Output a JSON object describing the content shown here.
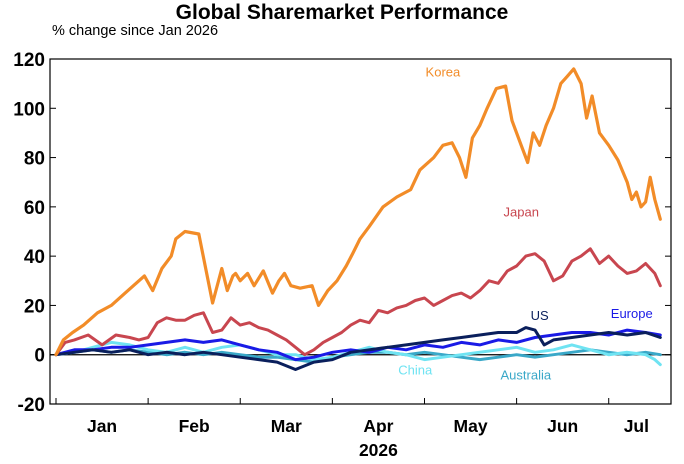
{
  "chart_data": {
    "type": "line",
    "title": "Global Sharemarket Performance",
    "subtitle": "% change since Jan 2026",
    "xlabel": "2026",
    "ylabel": "",
    "ylim": [
      -20,
      120
    ],
    "yticks": [
      -20,
      0,
      20,
      40,
      60,
      80,
      100,
      120
    ],
    "ytick_labels": [
      "-20",
      "0",
      "20",
      "40",
      "60",
      "80",
      "100",
      "120"
    ],
    "xlim": [
      0,
      6.6
    ],
    "months": [
      {
        "label": "Jan",
        "x": 0.5
      },
      {
        "label": "Feb",
        "x": 1.5
      },
      {
        "label": "Mar",
        "x": 2.5
      },
      {
        "label": "Apr",
        "x": 3.5
      },
      {
        "label": "May",
        "x": 4.5
      },
      {
        "label": "Jun",
        "x": 5.5
      },
      {
        "label": "Jul",
        "x": 6.3
      }
    ],
    "year_label": "2026",
    "grid": false,
    "legend": "direct labels on lines",
    "x_units": "months since start of Jan 2026 (0 = 1 Jan, 1 = 1 Feb, ...)",
    "series": [
      {
        "name": "Korea",
        "color": "#f28c28",
        "x": [
          0.0,
          0.08,
          0.18,
          0.3,
          0.45,
          0.6,
          0.75,
          0.9,
          0.96,
          1.05,
          1.15,
          1.25,
          1.3,
          1.4,
          1.55,
          1.7,
          1.8,
          1.86,
          1.92,
          1.95,
          2.0,
          2.08,
          2.15,
          2.25,
          2.35,
          2.42,
          2.48,
          2.55,
          2.65,
          2.78,
          2.85,
          2.95,
          3.05,
          3.15,
          3.22,
          3.3,
          3.4,
          3.55,
          3.7,
          3.85,
          3.95,
          4.1,
          4.2,
          4.3,
          4.38,
          4.45,
          4.52,
          4.6,
          4.68,
          4.78,
          4.88,
          4.95,
          5.05,
          5.12,
          5.18,
          5.25,
          5.32,
          5.4,
          5.48,
          5.55,
          5.62,
          5.7,
          5.76,
          5.82,
          5.9,
          6.0,
          6.1,
          6.2,
          6.25,
          6.3,
          6.35,
          6.4,
          6.45,
          6.5,
          6.56
        ],
        "values": [
          0,
          6,
          9,
          12,
          17,
          20,
          25,
          30,
          32,
          26,
          35,
          40,
          47,
          50,
          49,
          21,
          35,
          26,
          32,
          33,
          30,
          33,
          28,
          34,
          25,
          30,
          33,
          28,
          27,
          28,
          20,
          26,
          30,
          36,
          41,
          47,
          52,
          60,
          64,
          67,
          75,
          80,
          85,
          86,
          80,
          72,
          88,
          93,
          100,
          108,
          109,
          95,
          85,
          78,
          90,
          85,
          93,
          100,
          110,
          113,
          116,
          110,
          96,
          105,
          90,
          85,
          79,
          70,
          63,
          66,
          60,
          62,
          72,
          63,
          55
        ]
      },
      {
        "name": "Japan",
        "color": "#c8464f",
        "x": [
          0.0,
          0.1,
          0.2,
          0.35,
          0.5,
          0.65,
          0.8,
          0.9,
          1.0,
          1.1,
          1.2,
          1.3,
          1.4,
          1.5,
          1.6,
          1.7,
          1.8,
          1.9,
          2.0,
          2.1,
          2.2,
          2.3,
          2.4,
          2.5,
          2.6,
          2.7,
          2.8,
          2.9,
          3.0,
          3.1,
          3.2,
          3.3,
          3.4,
          3.5,
          3.6,
          3.7,
          3.8,
          3.9,
          4.0,
          4.1,
          4.2,
          4.3,
          4.4,
          4.5,
          4.6,
          4.7,
          4.8,
          4.9,
          5.0,
          5.1,
          5.2,
          5.3,
          5.4,
          5.5,
          5.6,
          5.7,
          5.8,
          5.9,
          6.0,
          6.1,
          6.2,
          6.3,
          6.4,
          6.5,
          6.56
        ],
        "values": [
          0,
          5,
          6,
          8,
          4,
          8,
          7,
          6,
          7,
          13,
          15,
          14,
          14,
          16,
          17,
          9,
          10,
          15,
          12,
          13,
          11,
          10,
          8,
          6,
          3,
          0,
          2,
          5,
          7,
          9,
          12,
          14,
          13,
          18,
          17,
          19,
          20,
          22,
          23,
          20,
          22,
          24,
          25,
          23,
          26,
          30,
          29,
          34,
          36,
          40,
          41,
          38,
          30,
          32,
          38,
          40,
          43,
          37,
          40,
          36,
          33,
          34,
          37,
          33,
          28
        ]
      },
      {
        "name": "US",
        "color": "#0a1f5c",
        "x": [
          0.0,
          0.2,
          0.4,
          0.6,
          0.8,
          1.0,
          1.2,
          1.4,
          1.6,
          1.8,
          2.0,
          2.2,
          2.4,
          2.6,
          2.8,
          3.0,
          3.2,
          3.4,
          3.6,
          3.8,
          4.0,
          4.2,
          4.4,
          4.6,
          4.8,
          5.0,
          5.1,
          5.2,
          5.3,
          5.4,
          5.6,
          5.8,
          6.0,
          6.2,
          6.4,
          6.56
        ],
        "values": [
          0,
          1,
          2,
          1,
          2,
          0,
          1,
          0,
          1,
          0,
          -1,
          -2,
          -3,
          -6,
          -3,
          -2,
          1,
          2,
          3,
          4,
          5,
          6,
          7,
          8,
          9,
          9,
          11,
          10,
          4,
          6,
          7,
          8,
          9,
          8,
          9,
          7
        ]
      },
      {
        "name": "Europe",
        "color": "#1a1ae6",
        "x": [
          0.0,
          0.2,
          0.4,
          0.6,
          0.8,
          1.0,
          1.2,
          1.4,
          1.6,
          1.8,
          2.0,
          2.2,
          2.4,
          2.6,
          2.8,
          3.0,
          3.2,
          3.4,
          3.6,
          3.8,
          4.0,
          4.2,
          4.4,
          4.6,
          4.8,
          5.0,
          5.2,
          5.4,
          5.6,
          5.8,
          6.0,
          6.2,
          6.4,
          6.56
        ],
        "values": [
          0,
          2,
          2,
          3,
          3,
          4,
          5,
          6,
          5,
          6,
          4,
          2,
          1,
          -2,
          -1,
          1,
          2,
          1,
          3,
          2,
          4,
          3,
          5,
          4,
          6,
          5,
          7,
          8,
          9,
          9,
          8,
          10,
          9,
          8
        ]
      },
      {
        "name": "China",
        "color": "#6fe3f2",
        "x": [
          0.0,
          0.2,
          0.4,
          0.6,
          0.8,
          1.0,
          1.2,
          1.4,
          1.6,
          1.8,
          2.0,
          2.2,
          2.4,
          2.6,
          2.8,
          3.0,
          3.2,
          3.4,
          3.6,
          3.8,
          4.0,
          4.2,
          4.4,
          4.6,
          4.8,
          5.0,
          5.2,
          5.4,
          5.6,
          5.8,
          6.0,
          6.2,
          6.4,
          6.5,
          6.56
        ],
        "values": [
          0,
          1,
          3,
          5,
          4,
          2,
          1,
          3,
          1,
          3,
          4,
          2,
          0,
          0,
          -2,
          -1,
          1,
          3,
          1,
          0,
          -2,
          -1,
          0,
          1,
          2,
          3,
          1,
          2,
          4,
          2,
          0,
          1,
          0,
          -2,
          -4
        ]
      },
      {
        "name": "Australia",
        "color": "#3aa8c8",
        "x": [
          0.0,
          0.2,
          0.4,
          0.6,
          0.8,
          1.0,
          1.2,
          1.4,
          1.6,
          1.8,
          2.0,
          2.2,
          2.4,
          2.6,
          2.8,
          3.0,
          3.2,
          3.4,
          3.6,
          3.8,
          4.0,
          4.2,
          4.4,
          4.6,
          4.8,
          5.0,
          5.2,
          5.4,
          5.6,
          5.8,
          6.0,
          6.2,
          6.4,
          6.56
        ],
        "values": [
          0,
          1,
          2,
          1,
          2,
          1,
          0,
          1,
          0,
          1,
          0,
          -1,
          -1,
          -2,
          -3,
          -1,
          0,
          1,
          1,
          0,
          1,
          0,
          -1,
          -2,
          -1,
          0,
          -1,
          0,
          1,
          2,
          1,
          0,
          1,
          0
        ]
      }
    ]
  }
}
